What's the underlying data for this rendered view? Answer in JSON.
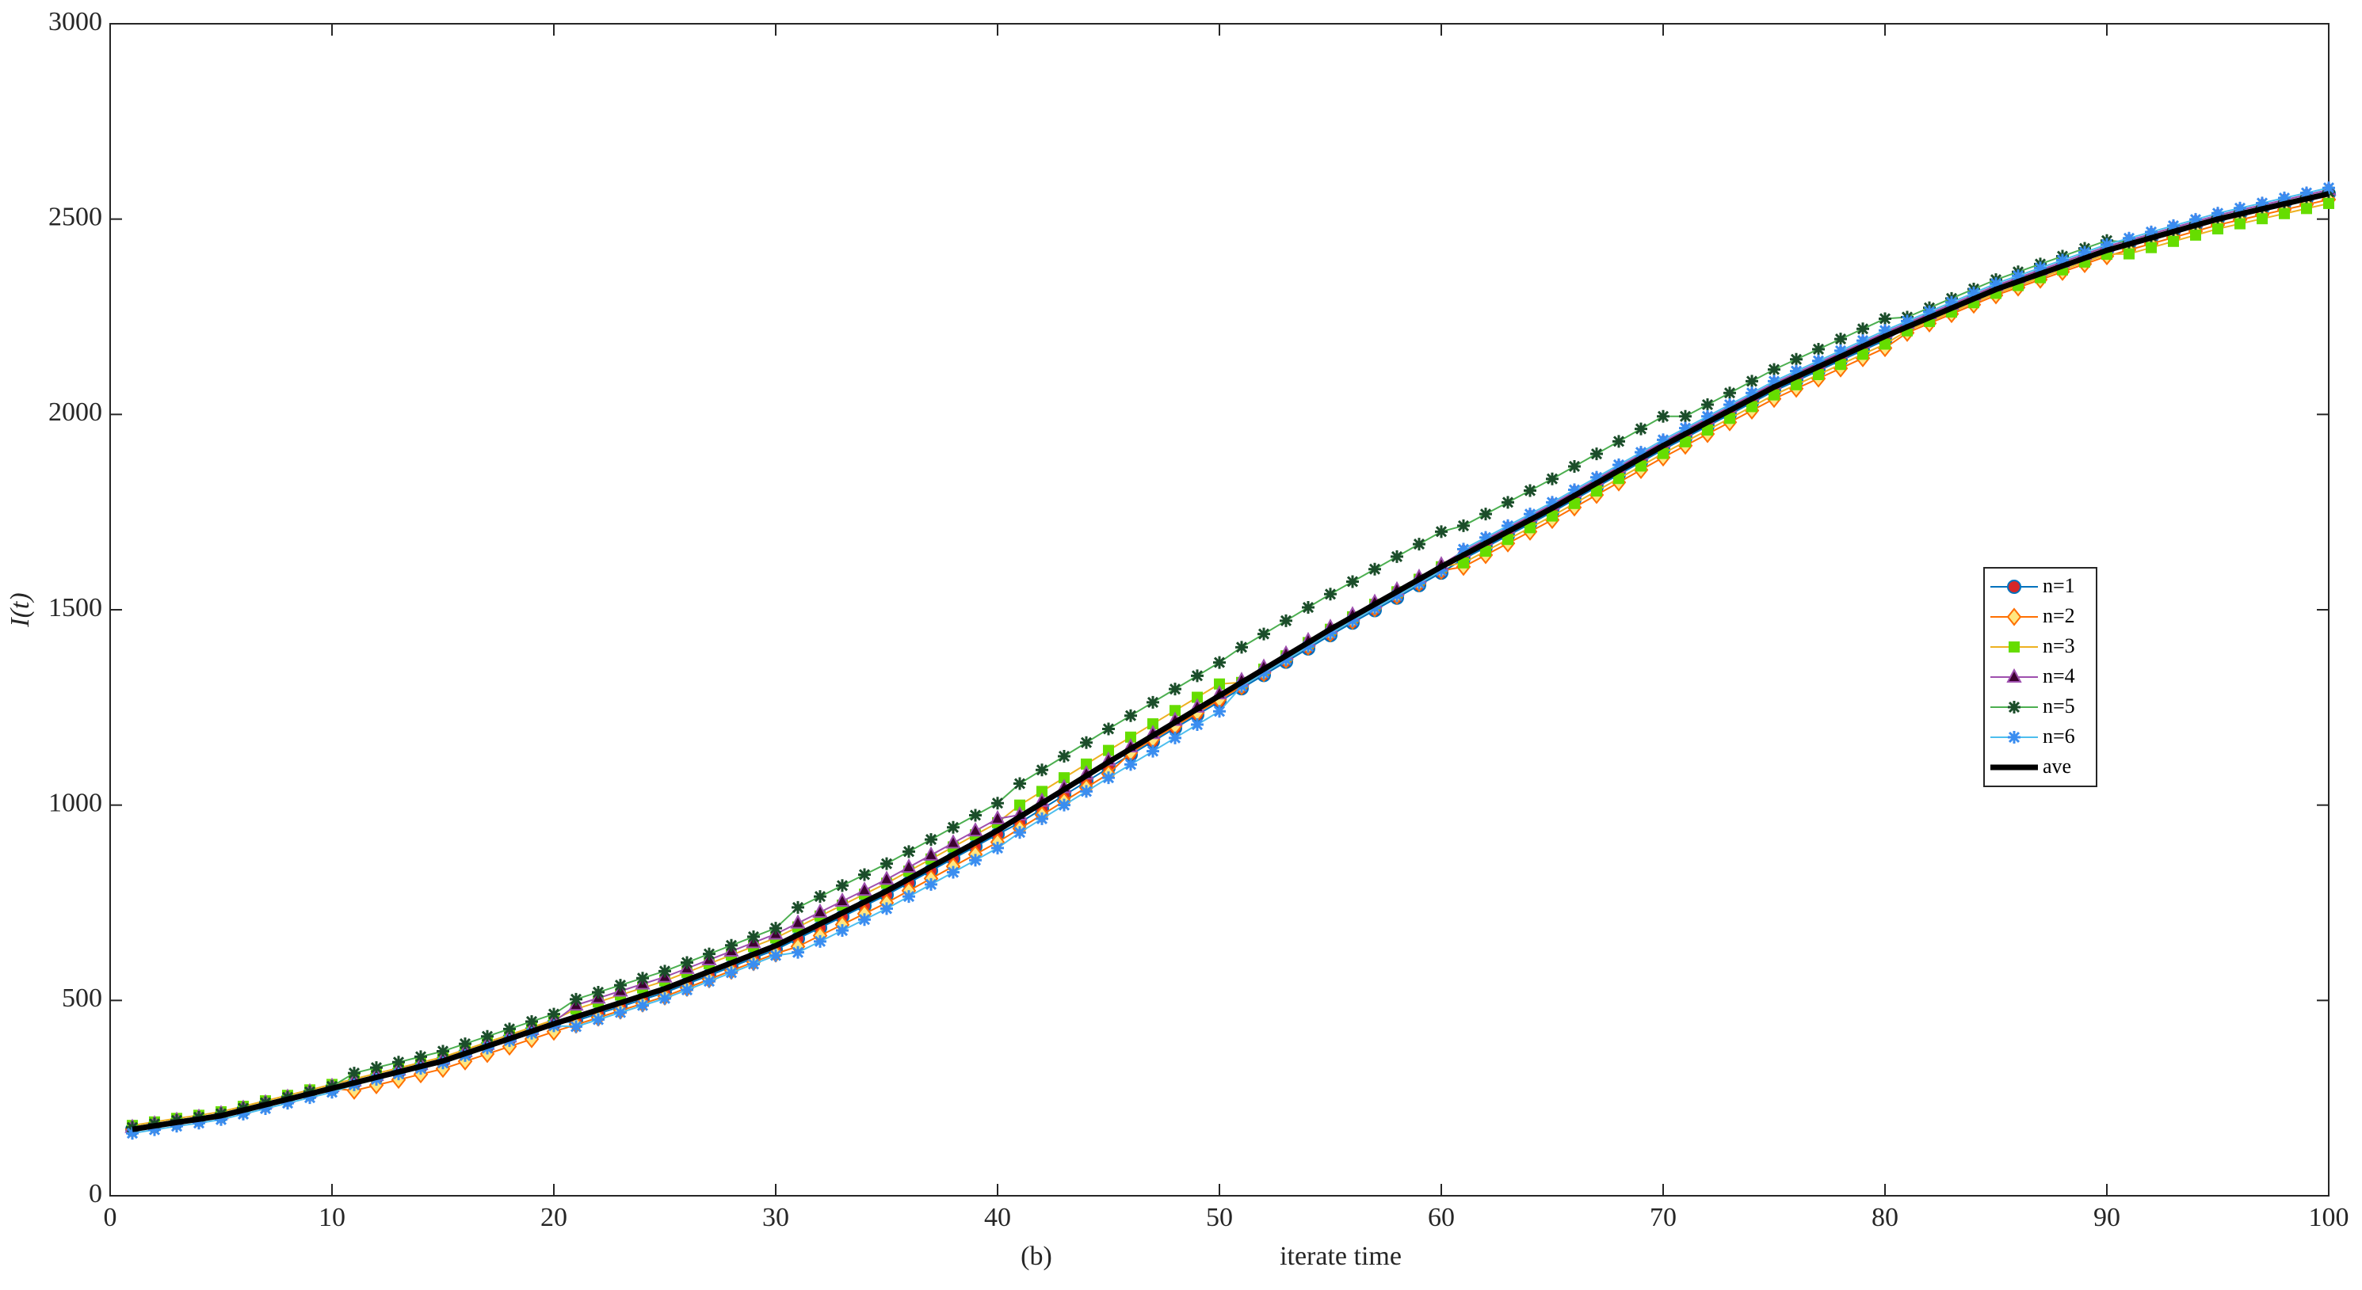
{
  "chart_data": {
    "type": "line",
    "x_label": "iterate time",
    "y_label": "I(t)",
    "annotation": "(b)",
    "x": [
      1,
      2,
      3,
      4,
      5,
      6,
      7,
      8,
      9,
      10,
      11,
      12,
      13,
      14,
      15,
      16,
      17,
      18,
      19,
      20,
      21,
      22,
      23,
      24,
      25,
      26,
      27,
      28,
      29,
      30,
      31,
      32,
      33,
      34,
      35,
      36,
      37,
      38,
      39,
      40,
      41,
      42,
      43,
      44,
      45,
      46,
      47,
      48,
      49,
      50,
      51,
      52,
      53,
      54,
      55,
      56,
      57,
      58,
      59,
      60,
      61,
      62,
      63,
      64,
      65,
      66,
      67,
      68,
      69,
      70,
      71,
      72,
      73,
      74,
      75,
      76,
      77,
      78,
      79,
      80,
      81,
      82,
      83,
      84,
      85,
      86,
      87,
      88,
      89,
      90,
      91,
      92,
      93,
      94,
      95,
      96,
      97,
      98,
      99,
      100
    ],
    "xlim": [
      0,
      100
    ],
    "xticks": [
      0,
      10,
      20,
      30,
      40,
      50,
      60,
      70,
      80,
      90,
      100
    ],
    "ylim": [
      0,
      3000
    ],
    "yticks": [
      0,
      500,
      1000,
      1500,
      2000,
      2500,
      3000
    ],
    "legend": "east",
    "series": [
      {
        "name": "n=1",
        "color": "#0072bd",
        "marker": "circle",
        "marker_color": "#d62728",
        "values": [
          170,
          179,
          188,
          196,
          205,
          219,
          233,
          247,
          261,
          275,
          289,
          303,
          317,
          331,
          345,
          364,
          383,
          402,
          421,
          440,
          448,
          466,
          484,
          502,
          520,
          542,
          564,
          586,
          608,
          630,
          658,
          686,
          714,
          742,
          770,
          801,
          832,
          863,
          894,
          925,
          955,
          990,
          1025,
          1060,
          1095,
          1129,
          1163,
          1197,
          1231,
          1265,
          1299,
          1333,
          1367,
          1401,
          1435,
          1467,
          1499,
          1531,
          1563,
          1595,
          1630,
          1660,
          1690,
          1720,
          1750,
          1782,
          1814,
          1846,
          1878,
          1910,
          1940,
          1970,
          2000,
          2030,
          2060,
          2086,
          2112,
          2138,
          2164,
          2190,
          2224,
          2248,
          2272,
          2296,
          2320,
          2340,
          2360,
          2380,
          2400,
          2420,
          2436,
          2452,
          2468,
          2484,
          2500,
          2513,
          2526,
          2539,
          2552,
          2565
        ]
      },
      {
        "name": "n=2",
        "color": "#ff6f00",
        "marker": "diamond",
        "marker_color": "#ffe680",
        "values": [
          170,
          179,
          188,
          196,
          205,
          219,
          233,
          247,
          261,
          275,
          269,
          283,
          297,
          311,
          325,
          344,
          363,
          382,
          401,
          420,
          438,
          456,
          474,
          492,
          510,
          532,
          554,
          576,
          598,
          620,
          638,
          666,
          694,
          722,
          750,
          781,
          812,
          843,
          874,
          905,
          940,
          975,
          1010,
          1045,
          1080,
          1134,
          1168,
          1202,
          1236,
          1270,
          1304,
          1338,
          1372,
          1406,
          1440,
          1472,
          1504,
          1536,
          1568,
          1600,
          1610,
          1640,
          1670,
          1700,
          1730,
          1762,
          1794,
          1826,
          1858,
          1890,
          1920,
          1950,
          1980,
          2010,
          2040,
          2066,
          2092,
          2118,
          2144,
          2170,
          2209,
          2233,
          2257,
          2281,
          2305,
          2325,
          2345,
          2365,
          2385,
          2405,
          2421,
          2437,
          2453,
          2469,
          2485,
          2498,
          2511,
          2524,
          2537,
          2550
        ]
      },
      {
        "name": "n=3",
        "color": "#edb120",
        "marker": "square",
        "marker_color": "#66dd00",
        "values": [
          180,
          189,
          198,
          206,
          215,
          229,
          243,
          257,
          271,
          285,
          299,
          313,
          327,
          341,
          355,
          374,
          393,
          412,
          431,
          450,
          478,
          496,
          514,
          532,
          550,
          572,
          594,
          616,
          638,
          660,
          688,
          716,
          744,
          772,
          800,
          831,
          862,
          893,
          924,
          955,
          1000,
          1035,
          1070,
          1105,
          1140,
          1174,
          1208,
          1242,
          1276,
          1310,
          1314,
          1348,
          1382,
          1416,
          1450,
          1482,
          1514,
          1546,
          1578,
          1610,
          1620,
          1650,
          1680,
          1710,
          1740,
          1772,
          1804,
          1836,
          1868,
          1900,
          1930,
          1960,
          1990,
          2020,
          2050,
          2076,
          2102,
          2128,
          2154,
          2180,
          2214,
          2238,
          2262,
          2286,
          2310,
          2330,
          2350,
          2370,
          2390,
          2410,
          2411,
          2427,
          2443,
          2459,
          2475,
          2488,
          2501,
          2514,
          2527,
          2540
        ]
      },
      {
        "name": "n=4",
        "color": "#9e4fae",
        "marker": "triangle",
        "marker_color": "#3d0030",
        "values": [
          175,
          184,
          193,
          201,
          210,
          224,
          238,
          252,
          266,
          280,
          294,
          308,
          322,
          336,
          350,
          369,
          388,
          407,
          426,
          445,
          488,
          506,
          524,
          542,
          560,
          582,
          604,
          626,
          648,
          670,
          698,
          726,
          754,
          782,
          810,
          841,
          872,
          903,
          934,
          965,
          975,
          1010,
          1045,
          1080,
          1115,
          1149,
          1183,
          1217,
          1251,
          1285,
          1319,
          1353,
          1387,
          1421,
          1455,
          1487,
          1519,
          1551,
          1583,
          1615,
          1650,
          1680,
          1710,
          1740,
          1770,
          1802,
          1834,
          1866,
          1898,
          1930,
          1960,
          1990,
          2020,
          2050,
          2080,
          2106,
          2132,
          2158,
          2184,
          2210,
          2234,
          2258,
          2282,
          2306,
          2330,
          2350,
          2370,
          2390,
          2410,
          2430,
          2446,
          2462,
          2478,
          2494,
          2510,
          2523,
          2536,
          2549,
          2562,
          2575
        ]
      },
      {
        "name": "n=5",
        "color": "#4caf50",
        "marker": "asterisk",
        "marker_color": "#1b4d2a",
        "values": [
          175,
          184,
          193,
          201,
          210,
          224,
          238,
          252,
          266,
          280,
          314,
          328,
          342,
          356,
          370,
          389,
          408,
          427,
          446,
          465,
          503,
          521,
          539,
          557,
          575,
          597,
          619,
          641,
          663,
          685,
          738,
          766,
          794,
          822,
          850,
          881,
          912,
          943,
          974,
          1005,
          1055,
          1090,
          1125,
          1160,
          1195,
          1229,
          1263,
          1297,
          1331,
          1365,
          1404,
          1438,
          1472,
          1506,
          1540,
          1572,
          1604,
          1636,
          1668,
          1700,
          1715,
          1745,
          1775,
          1805,
          1835,
          1867,
          1899,
          1931,
          1963,
          1995,
          1995,
          2025,
          2055,
          2085,
          2115,
          2141,
          2167,
          2193,
          2219,
          2245,
          2249,
          2273,
          2297,
          2321,
          2345,
          2365,
          2385,
          2405,
          2425,
          2445,
          2441,
          2457,
          2473,
          2489,
          2505,
          2518,
          2531,
          2544,
          2557,
          2570
        ]
      },
      {
        "name": "n=6",
        "color": "#4dbeee",
        "marker": "asterisk",
        "marker_color": "#3a8df0",
        "values": [
          160,
          169,
          178,
          186,
          195,
          209,
          223,
          237,
          251,
          265,
          284,
          298,
          312,
          326,
          340,
          359,
          378,
          397,
          416,
          435,
          433,
          451,
          469,
          487,
          505,
          527,
          549,
          571,
          593,
          615,
          623,
          651,
          679,
          707,
          735,
          766,
          797,
          828,
          859,
          890,
          930,
          965,
          1000,
          1035,
          1070,
          1104,
          1138,
          1172,
          1206,
          1240,
          1304,
          1338,
          1372,
          1406,
          1440,
          1472,
          1504,
          1536,
          1568,
          1600,
          1655,
          1685,
          1715,
          1745,
          1775,
          1807,
          1839,
          1871,
          1903,
          1935,
          1965,
          1995,
          2025,
          2055,
          2085,
          2111,
          2137,
          2163,
          2189,
          2215,
          2239,
          2263,
          2287,
          2311,
          2335,
          2355,
          2375,
          2395,
          2415,
          2435,
          2451,
          2467,
          2483,
          2499,
          2515,
          2528,
          2541,
          2554,
          2567,
          2580
        ]
      },
      {
        "name": "ave",
        "color": "#000000",
        "marker": "none",
        "width": 7,
        "values": [
          170,
          179,
          188,
          196,
          205,
          219,
          233,
          247,
          261,
          275,
          289,
          303,
          317,
          331,
          345,
          364,
          383,
          402,
          421,
          440,
          458,
          476,
          494,
          512,
          530,
          552,
          574,
          596,
          618,
          640,
          668,
          696,
          724,
          752,
          780,
          811,
          842,
          873,
          904,
          935,
          970,
          1005,
          1040,
          1075,
          1110,
          1144,
          1178,
          1212,
          1246,
          1280,
          1314,
          1348,
          1382,
          1416,
          1450,
          1482,
          1514,
          1546,
          1578,
          1610,
          1640,
          1670,
          1700,
          1730,
          1760,
          1792,
          1824,
          1856,
          1888,
          1920,
          1950,
          1980,
          2010,
          2040,
          2070,
          2096,
          2122,
          2148,
          2174,
          2200,
          2224,
          2248,
          2272,
          2296,
          2320,
          2340,
          2360,
          2380,
          2400,
          2420,
          2436,
          2452,
          2468,
          2484,
          2500,
          2513,
          2526,
          2539,
          2552,
          2565
        ]
      }
    ]
  }
}
